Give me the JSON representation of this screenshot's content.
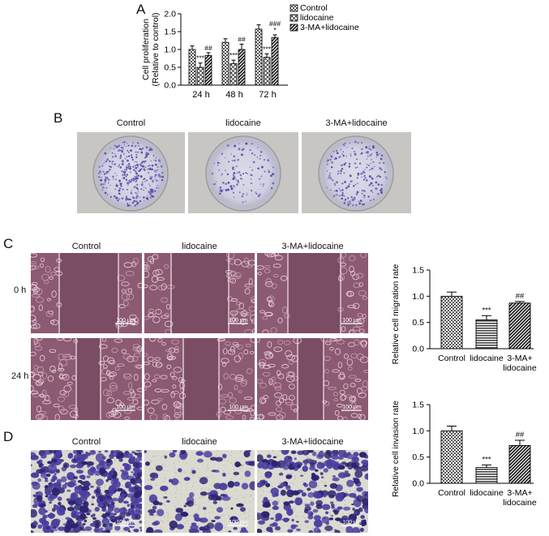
{
  "panels": {
    "A": {
      "letter": "A"
    },
    "B": {
      "letter": "B",
      "captions": [
        "Control",
        "lidocaine",
        "3-MA+lidocaine"
      ]
    },
    "C": {
      "letter": "C",
      "captions": [
        "Control",
        "lidocaine",
        "3-MA+lidocaine"
      ],
      "rows": [
        "0 h",
        "24 h"
      ],
      "scale_bar": "100 μm"
    },
    "D": {
      "letter": "D",
      "captions": [
        "Control",
        "lidocaine",
        "3-MA+lidocaine"
      ],
      "scale_bar": "100 μm"
    }
  },
  "chart_data": [
    {
      "type": "bar",
      "categories": [
        "24 h",
        "48 h",
        "72 h"
      ],
      "ylabel": "Cell proliferation (Relative to control)",
      "ylim": [
        0,
        2.0
      ],
      "yticks": [
        "0.0",
        "0.5",
        "1.0",
        "1.5",
        "2.0"
      ],
      "legend": [
        "Control",
        "lidocaine",
        "3-MA+lidocaine"
      ],
      "legend_position": "top-right",
      "series": [
        {
          "name": "Control",
          "values": [
            1.0,
            1.2,
            1.57
          ],
          "errors": [
            0.1,
            0.1,
            0.12
          ],
          "labels": [
            "",
            "",
            ""
          ]
        },
        {
          "name": "lidocaine",
          "values": [
            0.5,
            0.6,
            0.78
          ],
          "errors": [
            0.12,
            0.1,
            0.1
          ],
          "labels": [
            "***",
            "***",
            "***"
          ]
        },
        {
          "name": "3-MA+lidocaine",
          "values": [
            0.83,
            1.0,
            1.33
          ],
          "errors": [
            0.08,
            0.15,
            0.08
          ],
          "labels": [
            "##",
            "##",
            "###\n*"
          ]
        }
      ]
    },
    {
      "type": "bar",
      "categories": [
        "Control",
        "lidocaine",
        "3-MA+\nlidocaine"
      ],
      "ylabel": "Relative cell migration rate",
      "ylim": [
        0,
        1.5
      ],
      "yticks": [
        "0.0",
        "0.5",
        "1.0",
        "1.5"
      ],
      "values": [
        1.0,
        0.55,
        0.87
      ],
      "errors": [
        0.08,
        0.08,
        0.03
      ],
      "labels": [
        "",
        "***",
        "##"
      ]
    },
    {
      "type": "bar",
      "categories": [
        "Control",
        "lidocaine",
        "3-MA+\nlidocaine"
      ],
      "ylabel": "Relative cell invasion rate",
      "ylim": [
        0,
        1.5
      ],
      "yticks": [
        "0.0",
        "0.5",
        "1.0",
        "1.5"
      ],
      "values": [
        1.0,
        0.3,
        0.72
      ],
      "errors": [
        0.09,
        0.05,
        0.1
      ],
      "labels": [
        "",
        "***",
        "##"
      ]
    }
  ]
}
